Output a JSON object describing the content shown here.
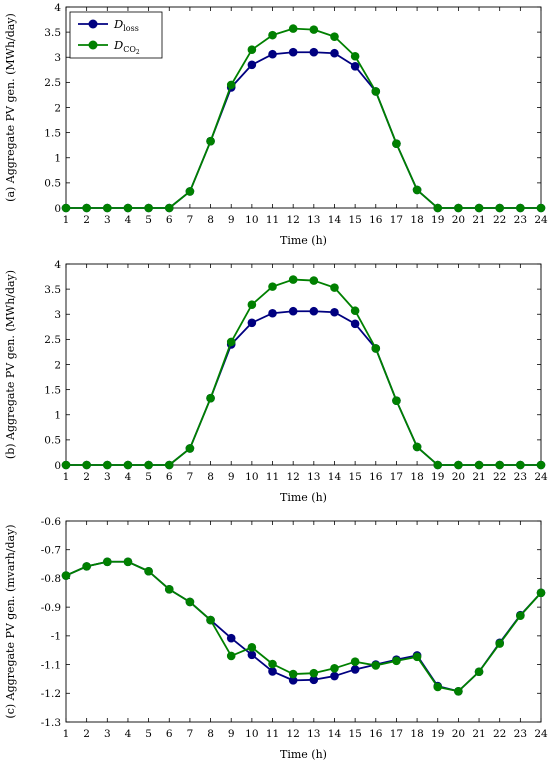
{
  "colors": {
    "loss": "#000080",
    "co2": "#008000"
  },
  "legend": {
    "loss_main": "D",
    "loss_sub": "loss",
    "co2_main": "D",
    "co2_sub": "CO",
    "co2_sub2": "2"
  },
  "chart_data": [
    {
      "type": "line",
      "xlabel": "Time (h)",
      "ylabel": "(a) Aggregate PV gen. (MWh/day)",
      "xlim": [
        1,
        24
      ],
      "ylim": [
        0,
        4
      ],
      "xticks": [
        1,
        2,
        3,
        4,
        5,
        6,
        7,
        8,
        9,
        10,
        11,
        12,
        13,
        14,
        15,
        16,
        17,
        18,
        19,
        20,
        21,
        22,
        23,
        24
      ],
      "yticks": [
        "0",
        "0.5",
        "1",
        "1.5",
        "2",
        "2.5",
        "3",
        "3.5",
        "4"
      ],
      "ytick_values": [
        0,
        0.5,
        1,
        1.5,
        2,
        2.5,
        3,
        3.5,
        4
      ],
      "legend_position": "top-left",
      "series": [
        {
          "key": "loss",
          "values": [
            0,
            0,
            0,
            0,
            0,
            0,
            0.33,
            1.33,
            2.4,
            2.85,
            3.06,
            3.1,
            3.1,
            3.08,
            2.82,
            2.32,
            1.28,
            0.36,
            0,
            0,
            0,
            0,
            0,
            0
          ]
        },
        {
          "key": "co2",
          "values": [
            0,
            0,
            0,
            0,
            0,
            0,
            0.33,
            1.33,
            2.45,
            3.15,
            3.44,
            3.57,
            3.55,
            3.41,
            3.02,
            2.32,
            1.28,
            0.36,
            0,
            0,
            0,
            0,
            0,
            0
          ]
        }
      ]
    },
    {
      "type": "line",
      "xlabel": "Time (h)",
      "ylabel": "(b) Aggregate PV gen. (MWh/day)",
      "xlim": [
        1,
        24
      ],
      "ylim": [
        0,
        4
      ],
      "xticks": [
        1,
        2,
        3,
        4,
        5,
        6,
        7,
        8,
        9,
        10,
        11,
        12,
        13,
        14,
        15,
        16,
        17,
        18,
        19,
        20,
        21,
        22,
        23,
        24
      ],
      "yticks": [
        "0",
        "0.5",
        "1",
        "1.5",
        "2",
        "2.5",
        "3",
        "3.5",
        "4"
      ],
      "ytick_values": [
        0,
        0.5,
        1,
        1.5,
        2,
        2.5,
        3,
        3.5,
        4
      ],
      "series": [
        {
          "key": "loss",
          "values": [
            0,
            0,
            0,
            0,
            0,
            0,
            0.33,
            1.33,
            2.4,
            2.83,
            3.02,
            3.06,
            3.06,
            3.04,
            2.81,
            2.32,
            1.28,
            0.36,
            0,
            0,
            0,
            0,
            0,
            0
          ]
        },
        {
          "key": "co2",
          "values": [
            0,
            0,
            0,
            0,
            0,
            0,
            0.33,
            1.33,
            2.45,
            3.19,
            3.55,
            3.69,
            3.67,
            3.53,
            3.07,
            2.32,
            1.28,
            0.36,
            0,
            0,
            0,
            0,
            0,
            0
          ]
        }
      ]
    },
    {
      "type": "line",
      "xlabel": "Time (h)",
      "ylabel": "(c) Aggregate PV gen. (mvarh/day)",
      "xlim": [
        1,
        24
      ],
      "ylim": [
        -1.3,
        -0.6
      ],
      "xticks": [
        1,
        2,
        3,
        4,
        5,
        6,
        7,
        8,
        9,
        10,
        11,
        12,
        13,
        14,
        15,
        16,
        17,
        18,
        19,
        20,
        21,
        22,
        23,
        24
      ],
      "yticks": [
        "-1.3",
        "-1.2",
        "-1.1",
        "-1",
        "-0.9",
        "-0.8",
        "-0.7",
        "-0.6"
      ],
      "ytick_values": [
        -1.3,
        -1.2,
        -1.1,
        -1,
        -0.9,
        -0.8,
        -0.7,
        -0.6
      ],
      "series": [
        {
          "key": "loss",
          "values": [
            -0.79,
            -0.758,
            -0.742,
            -0.742,
            -0.775,
            -0.838,
            -0.882,
            -0.945,
            -1.008,
            -1.066,
            -1.124,
            -1.155,
            -1.153,
            -1.14,
            -1.117,
            -1.1,
            -1.083,
            -1.068,
            -1.175,
            -1.193,
            -1.125,
            -1.024,
            -0.928,
            -0.85
          ]
        },
        {
          "key": "co2",
          "values": [
            -0.79,
            -0.758,
            -0.742,
            -0.742,
            -0.775,
            -0.838,
            -0.882,
            -0.945,
            -1.07,
            -1.04,
            -1.098,
            -1.133,
            -1.13,
            -1.113,
            -1.09,
            -1.103,
            -1.087,
            -1.073,
            -1.178,
            -1.193,
            -1.125,
            -1.027,
            -0.93,
            -0.85
          ]
        }
      ]
    }
  ]
}
